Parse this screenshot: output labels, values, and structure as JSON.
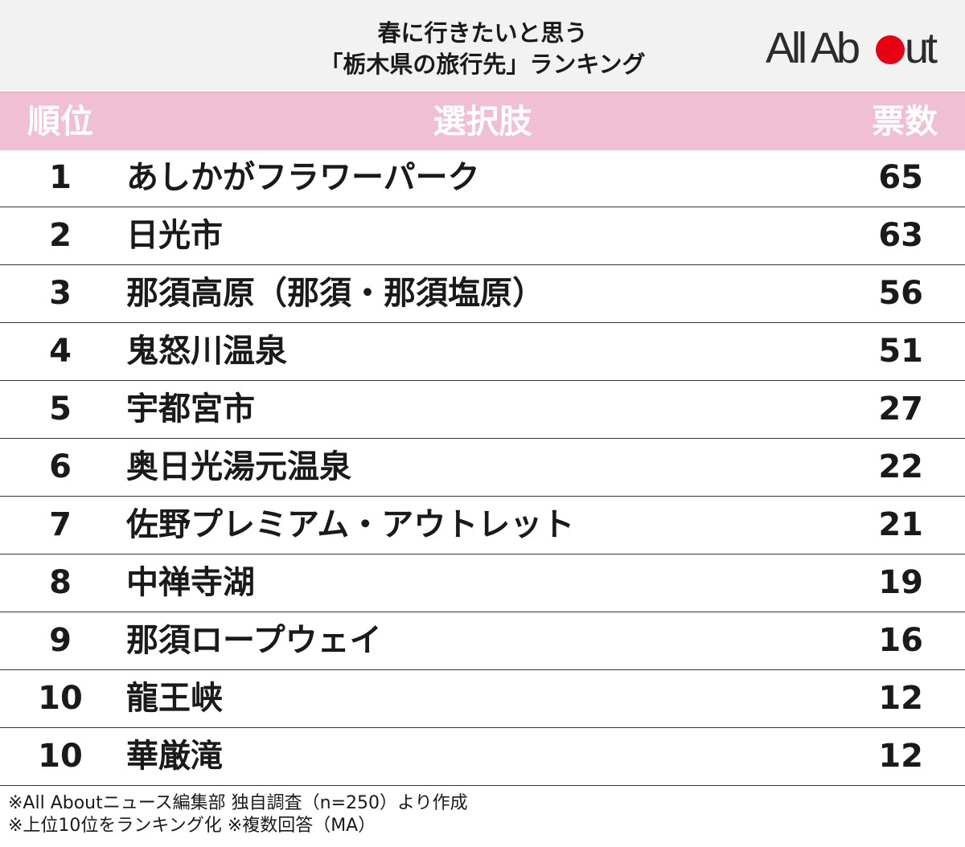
{
  "title": {
    "line1": "春に行きたいと思う",
    "line2": "「栃木県の旅行先」ランキング"
  },
  "logo": {
    "text_before": "All Ab",
    "text_after": "ut",
    "dot_color": "#e60012"
  },
  "colors": {
    "header_bg": "#f2f2f2",
    "column_header_bg": "#f0bfd3",
    "column_header_text": "#ffffff"
  },
  "headers": {
    "rank": "順位",
    "choice": "選択肢",
    "votes": "票数"
  },
  "chart_data": {
    "type": "table",
    "columns": [
      "順位",
      "選択肢",
      "票数"
    ],
    "rows": [
      {
        "rank": "1",
        "choice": "あしかがフラワーパーク",
        "votes": 65
      },
      {
        "rank": "2",
        "choice": "日光市",
        "votes": 63
      },
      {
        "rank": "3",
        "choice": "那須高原（那須・那須塩原）",
        "votes": 56
      },
      {
        "rank": "4",
        "choice": "鬼怒川温泉",
        "votes": 51
      },
      {
        "rank": "5",
        "choice": "宇都宮市",
        "votes": 27
      },
      {
        "rank": "6",
        "choice": "奥日光湯元温泉",
        "votes": 22
      },
      {
        "rank": "7",
        "choice": "佐野プレミアム・アウトレット",
        "votes": 21
      },
      {
        "rank": "8",
        "choice": "中禅寺湖",
        "votes": 19
      },
      {
        "rank": "9",
        "choice": "那須ロープウェイ",
        "votes": 16
      },
      {
        "rank": "10",
        "choice": "龍王峡",
        "votes": 12
      },
      {
        "rank": "10",
        "choice": "華厳滝",
        "votes": 12
      }
    ]
  },
  "notes": {
    "line1": "※All Aboutニュース編集部 独自調査（n=250）より作成",
    "line2": "※上位10位をランキング化 ※複数回答（MA）"
  }
}
